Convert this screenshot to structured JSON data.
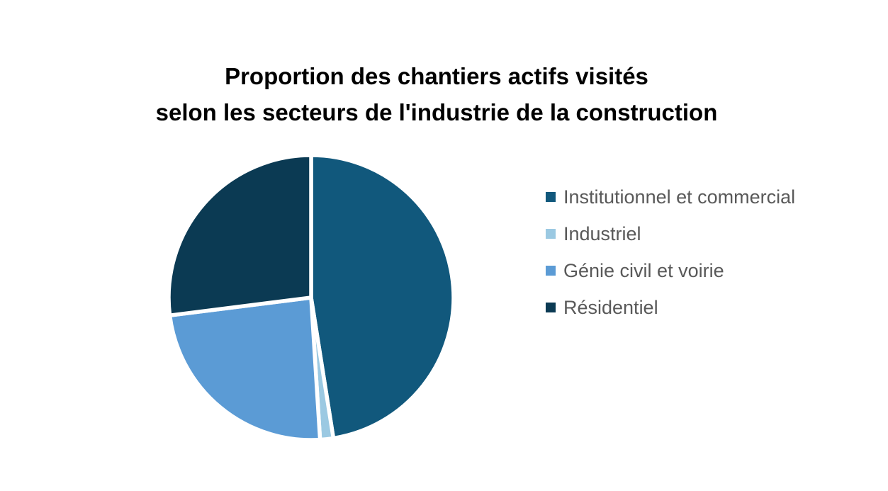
{
  "title": {
    "line1": "Proportion des chantiers actifs visités",
    "line2": "selon les secteurs de l'industrie de la construction"
  },
  "chart_data": {
    "type": "pie",
    "title": "Proportion des chantiers actifs visités selon les secteurs de l'industrie de la construction",
    "categories": [
      "Institutionnel et commercial",
      "Industriel",
      "Génie civil et voirie",
      "Résidentiel"
    ],
    "values": [
      47.5,
      1.5,
      24,
      27
    ],
    "unit": "percent",
    "colors": [
      "#11587C",
      "#9BC9E2",
      "#5B9BD5",
      "#0B3A53"
    ],
    "slice_border_color": "#FFFFFF",
    "start_angle_deg": 0,
    "direction": "clockwise",
    "legend_position": "right",
    "data_labels": false,
    "background_color": "#FFFFFF",
    "title_color": "#000000",
    "legend_text_color": "#595959"
  }
}
